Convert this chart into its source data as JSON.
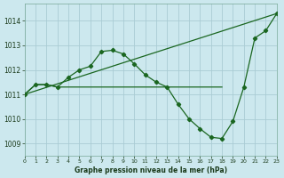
{
  "title": "Graphe pression niveau de la mer (hPa)",
  "background_color": "#cce8ee",
  "grid_color": "#aaccd4",
  "line_color": "#1a6620",
  "x_min": 0,
  "x_max": 23,
  "y_min": 1008.5,
  "y_max": 1014.7,
  "yticks": [
    1009,
    1010,
    1011,
    1012,
    1013,
    1014
  ],
  "xticks": [
    0,
    1,
    2,
    3,
    4,
    5,
    6,
    7,
    8,
    9,
    10,
    11,
    12,
    13,
    14,
    15,
    16,
    17,
    18,
    19,
    20,
    21,
    22,
    23
  ],
  "series_main": {
    "x": [
      0,
      1,
      2,
      3,
      4,
      5,
      6,
      7,
      8,
      9,
      10,
      11,
      12,
      13,
      14,
      15,
      16,
      17,
      18,
      19,
      20,
      21,
      22,
      23
    ],
    "y": [
      1011.0,
      1011.4,
      1011.4,
      1011.3,
      1011.7,
      1012.0,
      1012.15,
      1012.75,
      1012.8,
      1012.65,
      1012.25,
      1011.8,
      1011.5,
      1011.3,
      1010.6,
      1010.0,
      1009.6,
      1009.25,
      1009.2,
      1009.9,
      1011.3,
      1013.3,
      1013.6,
      1014.3
    ]
  },
  "series_flat": {
    "x": [
      0,
      1,
      2,
      3,
      12,
      13,
      14,
      15,
      16,
      17,
      18
    ],
    "y": [
      1011.0,
      1011.4,
      1011.4,
      1011.3,
      1011.3,
      1011.3,
      1011.3,
      1011.3,
      1011.3,
      1011.3,
      1011.3
    ]
  },
  "series_diag": {
    "x": [
      0,
      23
    ],
    "y": [
      1011.0,
      1014.3
    ]
  }
}
